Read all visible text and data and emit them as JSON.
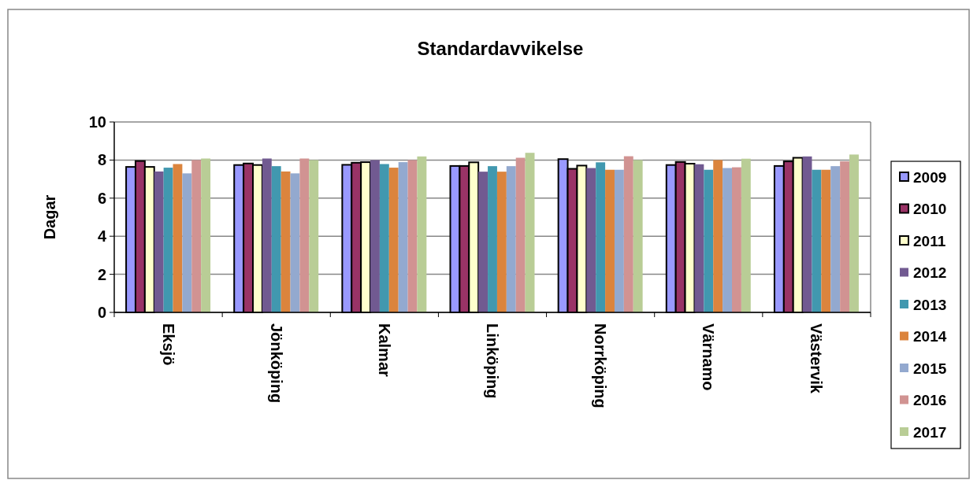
{
  "chart_data": {
    "type": "bar",
    "title": "Standardavvikelse",
    "ylabel": "Dagar",
    "categories": [
      "Eksjö",
      "Jönköping",
      "Kalmar",
      "Linköping",
      "Norrköping",
      "Värnamo",
      "Västervik"
    ],
    "series": [
      {
        "name": "2009",
        "color": "#9999ff",
        "values": [
          7.64,
          7.74,
          7.75,
          7.69,
          8.05,
          7.74,
          7.69
        ]
      },
      {
        "name": "2010",
        "color": "#993366",
        "values": [
          7.95,
          7.82,
          7.86,
          7.69,
          7.54,
          7.9,
          7.93
        ]
      },
      {
        "name": "2011",
        "color": "#ffffcc",
        "values": [
          7.64,
          7.74,
          7.89,
          7.88,
          7.71,
          7.81,
          8.12
        ]
      },
      {
        "name": "2012",
        "color": "#715a91",
        "values": [
          7.4,
          8.08,
          8.0,
          7.39,
          7.58,
          7.78,
          8.19
        ]
      },
      {
        "name": "2013",
        "color": "#4198af",
        "values": [
          7.6,
          7.68,
          7.79,
          7.68,
          7.88,
          7.49,
          7.49
        ]
      },
      {
        "name": "2014",
        "color": "#db843d",
        "values": [
          7.79,
          7.4,
          7.6,
          7.39,
          7.49,
          8.0,
          7.49
        ]
      },
      {
        "name": "2015",
        "color": "#93a9cf",
        "values": [
          7.3,
          7.3,
          7.89,
          7.68,
          7.49,
          7.58,
          7.68
        ]
      },
      {
        "name": "2016",
        "color": "#d19392",
        "values": [
          8.0,
          8.08,
          8.0,
          8.12,
          8.2,
          7.62,
          7.93
        ]
      },
      {
        "name": "2017",
        "color": "#b9cd96",
        "values": [
          8.08,
          8.0,
          8.19,
          8.38,
          8.0,
          8.07,
          8.29
        ]
      }
    ],
    "ylim": [
      0,
      10
    ],
    "yticks": [
      0,
      2,
      4,
      6,
      8,
      10
    ],
    "grid": "y",
    "legend": "right"
  }
}
